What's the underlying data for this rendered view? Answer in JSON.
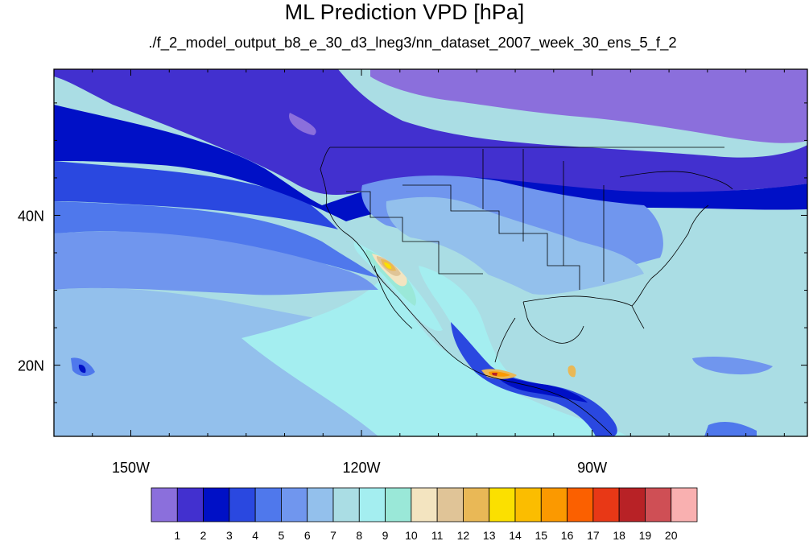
{
  "title": "ML Prediction VPD [hPa]",
  "subtitle": "./f_2_model_output_b8_e_30_d3_lneg3/nn_dataset_2007_week_30_ens_5_f_2",
  "map": {
    "projection": "cylindrical equidistant",
    "lon_range": [
      -160,
      -62
    ],
    "lat_range": [
      10.5,
      59.5
    ],
    "lon_ticks": [
      {
        "value": -150,
        "label": "150W"
      },
      {
        "value": -120,
        "label": "120W"
      },
      {
        "value": -90,
        "label": "90W"
      }
    ],
    "lat_ticks": [
      {
        "value": 40,
        "label": "40N"
      },
      {
        "value": 20,
        "label": "20N"
      }
    ],
    "background_level": 7
  },
  "colorbar": {
    "colors": [
      "#8b6fdc",
      "#4230cf",
      "#0010c6",
      "#2a48e0",
      "#4f78ec",
      "#7096ee",
      "#93c0ec",
      "#aadde4",
      "#a4eef0",
      "#9ae8d8",
      "#f3e4c0",
      "#e0c497",
      "#e9b856",
      "#fbe000",
      "#fbbd00",
      "#fb9900",
      "#fb6000",
      "#e83816",
      "#b82226",
      "#cf4f55",
      "#f9b0b0"
    ],
    "labels": [
      "1",
      "2",
      "3",
      "4",
      "5",
      "6",
      "7",
      "8",
      "9",
      "10",
      "11",
      "12",
      "13",
      "14",
      "15",
      "16",
      "17",
      "18",
      "19",
      "20"
    ]
  }
}
